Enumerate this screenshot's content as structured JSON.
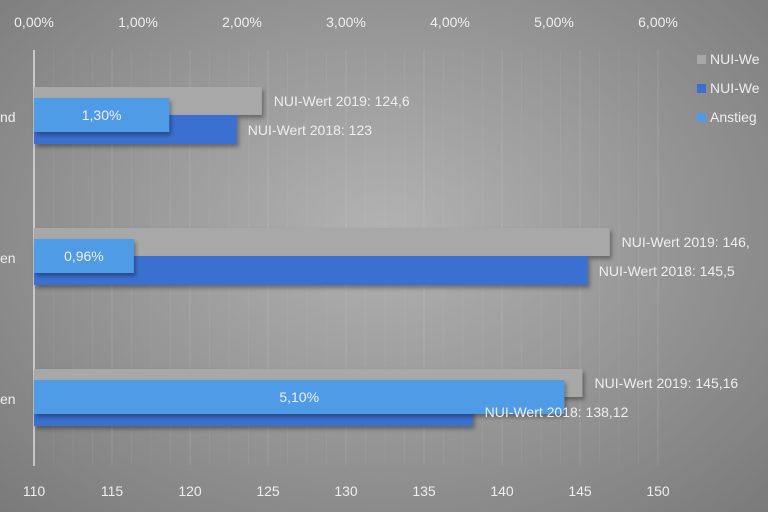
{
  "chart_data": {
    "type": "bar",
    "orientation": "horizontal",
    "categories": [
      "nd",
      "en",
      "en"
    ],
    "x_primary": {
      "range": [
        110,
        150
      ],
      "ticks": [
        "110",
        "115",
        "120",
        "125",
        "130",
        "135",
        "140",
        "145",
        "150"
      ],
      "position": "bottom"
    },
    "x_secondary": {
      "range": [
        0,
        6
      ],
      "ticks": [
        "0,00%",
        "1,00%",
        "2,00%",
        "3,00%",
        "4,00%",
        "5,00%",
        "6,00%"
      ],
      "position": "top"
    },
    "grid": true,
    "legend": {
      "placement": "right",
      "entries": [
        "NUI-We",
        "NUI-We",
        "Anstieg"
      ]
    },
    "series": [
      {
        "key": "2019",
        "axis": "primary",
        "color": "#a8a8a8",
        "values": [
          124.6,
          146.9,
          145.16
        ],
        "labels": [
          "NUI-Wert 2019: 124,6",
          "NUI-Wert 2019: 146,",
          "NUI-Wert 2019: 145,16"
        ]
      },
      {
        "key": "2018",
        "axis": "primary",
        "color": "#3a6fd0",
        "values": [
          123,
          145.5,
          138.12
        ],
        "labels": [
          "NUI-Wert 2018: 123",
          "NUI-Wert 2018: 145,5",
          "NUI-Wert 2018: 138,12"
        ]
      },
      {
        "key": "anstieg",
        "axis": "secondary",
        "color": "#4f9be6",
        "values": [
          1.3,
          0.96,
          5.1
        ],
        "labels": [
          "1,30%",
          "0,96%",
          "5,10%"
        ]
      }
    ]
  }
}
